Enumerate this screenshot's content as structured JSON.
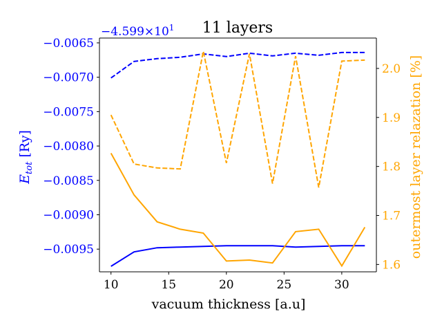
{
  "chart_data": {
    "type": "line",
    "title": "11 layers",
    "xlabel": "vacuum thickness [a.u]",
    "xticks": [
      10,
      15,
      20,
      25,
      30
    ],
    "xlim": [
      9,
      33
    ],
    "x": [
      10,
      12,
      14,
      16,
      18,
      20,
      22,
      24,
      26,
      28,
      30,
      32
    ],
    "left_axis": {
      "label_main": "E",
      "label_sub": "tot",
      "label_unit": " [Ry]",
      "color": "#0000ff",
      "offset_text": "−4.599×10",
      "offset_exp": "1",
      "ylim": [
        -0.00983,
        -0.00643
      ],
      "ticks": [
        -0.0065,
        -0.007,
        -0.0075,
        -0.008,
        -0.0085,
        -0.009,
        -0.0095
      ],
      "tick_labels": [
        "−0.0065",
        "−0.0070",
        "−0.0075",
        "−0.0080",
        "−0.0085",
        "−0.0090",
        "−0.0095"
      ]
    },
    "right_axis": {
      "label": "outermost layer relazation [%]",
      "color": "#ffa500",
      "ylim": [
        1.585,
        2.062
      ],
      "ticks": [
        1.6,
        1.7,
        1.8,
        1.9,
        2.0
      ],
      "tick_labels": [
        "1.6",
        "1.7",
        "1.8",
        "1.9",
        "2.0"
      ]
    },
    "series": [
      {
        "axis": "left",
        "color": "#0000ff",
        "dash": true,
        "values": [
          -0.00701,
          -0.00677,
          -0.00673,
          -0.00671,
          -0.00666,
          -0.0067,
          -0.00665,
          -0.00669,
          -0.00665,
          -0.00668,
          -0.00664,
          -0.00664
        ]
      },
      {
        "axis": "left",
        "color": "#0000ff",
        "dash": false,
        "values": [
          -0.00975,
          -0.00954,
          -0.00948,
          -0.00947,
          -0.00946,
          -0.00945,
          -0.00945,
          -0.00945,
          -0.00947,
          -0.00946,
          -0.00945,
          -0.00945
        ]
      },
      {
        "axis": "right",
        "color": "#ffa500",
        "dash": true,
        "values": [
          1.905,
          1.805,
          1.797,
          1.795,
          2.035,
          1.807,
          2.03,
          1.765,
          2.025,
          1.757,
          2.015,
          2.017
        ]
      },
      {
        "axis": "right",
        "color": "#ffa500",
        "dash": false,
        "values": [
          1.827,
          1.742,
          1.687,
          1.672,
          1.664,
          1.607,
          1.609,
          1.603,
          1.667,
          1.672,
          1.597,
          1.676
        ]
      }
    ]
  }
}
